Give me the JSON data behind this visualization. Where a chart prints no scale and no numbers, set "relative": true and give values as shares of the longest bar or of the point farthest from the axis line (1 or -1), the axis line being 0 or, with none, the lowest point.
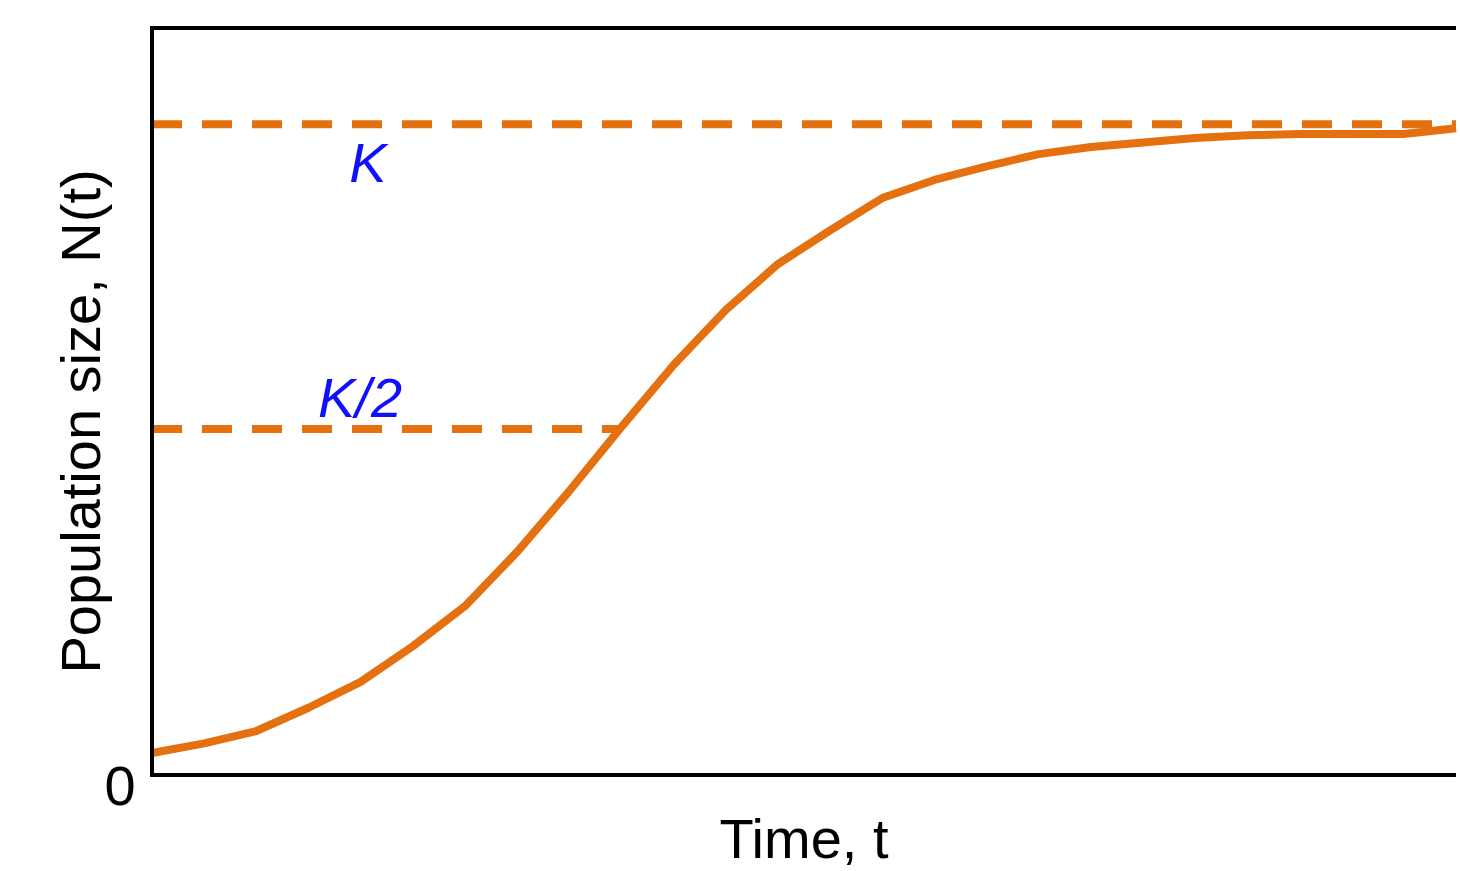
{
  "chart_data": {
    "type": "line",
    "relative": true,
    "xlabel": "Time, t",
    "ylabel": "Population size, N(t)",
    "categories": [
      null,
      null,
      null,
      null,
      null,
      null,
      null,
      null,
      null,
      null,
      null,
      null,
      null,
      null,
      null,
      null,
      null,
      null,
      null,
      null,
      null,
      null,
      null,
      null,
      null,
      null
    ],
    "series": [
      {
        "color": "#e5700f",
        "values": [
          0.034,
          0.049,
          0.068,
          0.104,
          0.144,
          0.199,
          0.261,
          0.345,
          0.439,
          0.538,
          0.634,
          0.719,
          0.79,
          0.842,
          0.892,
          0.92,
          0.941,
          0.96,
          0.971,
          0.978,
          0.985,
          0.989,
          0.991,
          0.991,
          0.991,
          1
        ]
      }
    ],
    "ref_lines": [
      {
        "axis": "y",
        "value": 1.006,
        "label": "K",
        "color": "#e5700f",
        "line_style": "dashed"
      },
      {
        "axis": "y",
        "value": 0.535,
        "label": "K/2",
        "color": "#e5700f",
        "line_style": "dashed"
      }
    ],
    "annotations": [
      "0"
    ],
    "marker": "none",
    "line_style": "solid"
  }
}
